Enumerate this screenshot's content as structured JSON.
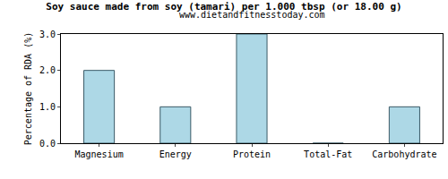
{
  "chart_data": {
    "type": "bar",
    "title": "Soy sauce made from soy (tamari) per 1.000 tbsp (or 18.00 g)",
    "subtitle": "www.dietandfitnesstoday.com",
    "y_label": "Percentage of RDA (%)",
    "categories": [
      "Magnesium",
      "Energy",
      "Protein",
      "Total-Fat",
      "Carbohydrate"
    ],
    "values": [
      2,
      1,
      3,
      0,
      1
    ],
    "color": "#add8e6",
    "ylim": [
      0,
      3
    ],
    "yticks": [
      {
        "value": 0,
        "label": "0.0"
      },
      {
        "value": 1,
        "label": "1.0"
      },
      {
        "value": 2,
        "label": "2.0"
      },
      {
        "value": 3,
        "label": "3.0"
      }
    ],
    "grid": false
  }
}
